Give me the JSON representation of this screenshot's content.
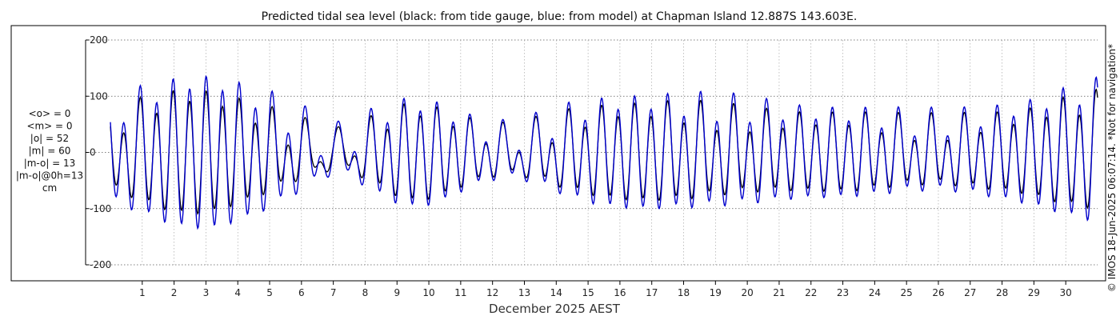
{
  "chart_data": {
    "type": "line",
    "title": "Predicted tidal sea level (black: from tide gauge, blue: from model) at Chapman Island 12.887S 143.603E.",
    "xlabel": "December 2025 AEST",
    "ylabel": "",
    "units": "cm",
    "x_range_days": [
      0,
      31
    ],
    "ylim": [
      -200,
      200
    ],
    "y_ticks": [
      -200,
      -100,
      0,
      100,
      200
    ],
    "x_ticks": [
      1,
      2,
      3,
      4,
      5,
      6,
      7,
      8,
      9,
      10,
      11,
      12,
      13,
      14,
      15,
      16,
      17,
      18,
      19,
      20,
      21,
      22,
      23,
      24,
      25,
      26,
      27,
      28,
      29,
      30
    ],
    "grid": true,
    "stats_text": [
      "<o> = 0",
      "<m> = 0",
      "|o| = 52",
      "|m| = 60",
      "|m-o| = 13",
      "|m-o|@0h=13",
      "cm"
    ],
    "credit": "© IMOS 18-Jun-2025 06:07:14. *Not for navigation*",
    "series": [
      {
        "color": "#000000",
        "days": [
          0,
          0.5,
          1,
          1.5,
          2,
          2.5,
          3,
          3.5,
          4,
          4.5,
          5,
          5.5,
          6,
          6.5,
          7,
          7.5,
          8,
          8.5,
          9,
          9.5,
          10,
          10.5,
          11,
          11.5,
          12,
          12.5,
          13,
          13.5,
          14,
          14.5,
          15,
          15.5,
          16,
          16.5,
          17,
          17.5,
          18,
          18.5,
          19,
          19.5,
          20,
          20.5,
          21,
          21.5,
          22,
          22.5,
          23,
          23.5,
          24,
          24.5,
          25,
          25.5,
          26,
          26.5,
          27,
          27.5,
          28,
          28.5,
          29,
          29.5,
          30,
          30.5,
          31
        ],
        "d1": [
          55,
          67,
          80,
          92,
          100,
          105,
          103,
          96,
          87,
          75,
          62,
          48,
          35,
          22,
          13,
          20,
          38,
          56,
          72,
          80,
          78,
          68,
          56,
          44,
          35,
          30,
          32,
          40,
          50,
          60,
          68,
          74,
          78,
          80,
          80,
          78,
          76,
          72,
          68,
          65,
          63,
          62,
          62,
          62,
          63,
          64,
          64,
          62,
          58,
          54,
          50,
          48,
          48,
          50,
          54,
          58,
          62,
          66,
          72,
          80,
          86,
          90,
          92
        ],
        "d2": [
          20,
          15,
          10,
          5,
          0,
          -3,
          -4,
          -3,
          0,
          5,
          12,
          18,
          22,
          24,
          24,
          20,
          14,
          8,
          2,
          -2,
          -3,
          -2,
          0,
          5,
          10,
          15,
          18,
          18,
          15,
          10,
          5,
          0,
          -3,
          -3,
          0,
          4,
          8,
          12,
          14,
          14,
          12,
          8,
          4,
          0,
          -2,
          -3,
          -2,
          0,
          4,
          8,
          12,
          14,
          14,
          12,
          8,
          4,
          0,
          -2,
          -2,
          0,
          4,
          8,
          12
        ],
        "offset": -6
      },
      {
        "color": "#0000cc",
        "days": [
          0,
          0.5,
          1,
          1.5,
          2,
          2.5,
          3,
          3.5,
          4,
          4.5,
          5,
          5.5,
          6,
          6.5,
          7,
          7.5,
          8,
          8.5,
          9,
          9.5,
          10,
          10.5,
          11,
          11.5,
          12,
          12.5,
          13,
          13.5,
          14,
          14.5,
          15,
          15.5,
          16,
          16.5,
          17,
          17.5,
          18,
          18.5,
          19,
          19.5,
          20,
          20.5,
          21,
          21.5,
          22,
          22.5,
          23,
          23.5,
          24,
          24.5,
          25,
          25.5,
          26,
          26.5,
          27,
          27.5,
          28,
          28.5,
          29,
          29.5,
          30,
          30.5,
          31
        ],
        "d1": [
          75,
          88,
          100,
          113,
          122,
          128,
          130,
          125,
          116,
          104,
          90,
          73,
          56,
          38,
          22,
          30,
          50,
          70,
          84,
          90,
          88,
          78,
          64,
          50,
          40,
          35,
          38,
          48,
          60,
          72,
          82,
          88,
          92,
          94,
          94,
          92,
          90,
          88,
          86,
          84,
          82,
          80,
          78,
          76,
          75,
          74,
          73,
          71,
          68,
          64,
          60,
          58,
          58,
          60,
          64,
          70,
          76,
          82,
          88,
          96,
          104,
          110,
          114
        ],
        "d2": [
          22,
          17,
          12,
          6,
          0,
          -3,
          -4,
          -3,
          0,
          6,
          13,
          20,
          24,
          26,
          26,
          22,
          16,
          9,
          2,
          -2,
          -3,
          -2,
          0,
          6,
          11,
          16,
          19,
          19,
          16,
          11,
          5,
          0,
          -3,
          -3,
          0,
          4,
          9,
          13,
          15,
          15,
          13,
          9,
          4,
          0,
          -2,
          -3,
          -2,
          0,
          4,
          9,
          13,
          15,
          15,
          13,
          9,
          4,
          0,
          -2,
          -2,
          0,
          4,
          9,
          13
        ],
        "offset": -8
      }
    ]
  }
}
